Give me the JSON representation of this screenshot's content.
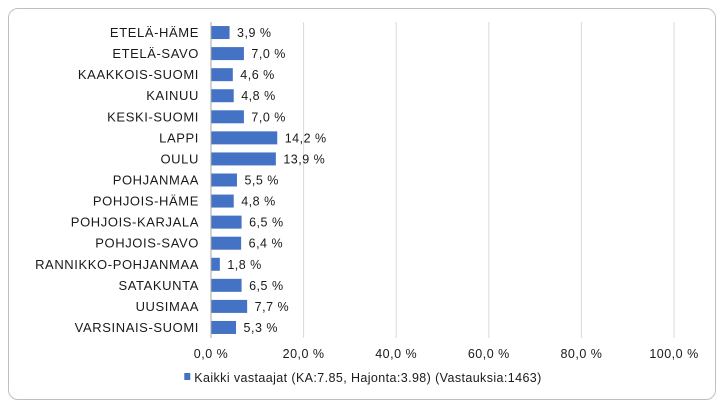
{
  "chart_data": {
    "type": "bar",
    "orientation": "horizontal",
    "categories": [
      "ETELÄ-HÄME",
      "ETELÄ-SAVO",
      "KAAKKOIS-SUOMI",
      "KAINUU",
      "KESKI-SUOMI",
      "LAPPI",
      "OULU",
      "POHJANMAA",
      "POHJOIS-HÄME",
      "POHJOIS-KARJALA",
      "POHJOIS-SAVO",
      "RANNIKKO-POHJANMAA",
      "SATAKUNTA",
      "UUSIMAA",
      "VARSINAIS-SUOMI"
    ],
    "series": [
      {
        "name": "Kaikki vastaajat (KA:7.85, Hajonta:3.98) (Vastauksia:1463)",
        "values": [
          3.9,
          7.0,
          4.6,
          4.8,
          7.0,
          14.2,
          13.9,
          5.5,
          4.8,
          6.5,
          6.4,
          1.8,
          6.5,
          7.7,
          5.3
        ],
        "value_labels": [
          "3,9 %",
          "7,0 %",
          "4,6 %",
          "4,8 %",
          "7,0 %",
          "14,2 %",
          "13,9 %",
          "5,5 %",
          "4,8 %",
          "6,5 %",
          "6,4 %",
          "1,8 %",
          "6,5 %",
          "7,7 %",
          "5,3 %"
        ],
        "color": "#4472c4"
      }
    ],
    "xlim": [
      0,
      100
    ],
    "x_ticks": [
      0,
      20,
      40,
      60,
      80,
      100
    ],
    "x_tick_labels": [
      "0,0 %",
      "20,0 %",
      "40,0 %",
      "60,0 %",
      "80,0 %",
      "100,0 %"
    ],
    "grid": true,
    "legend_position": "bottom"
  },
  "colors": {
    "bar": "#4472c4",
    "grid": "#d9d9d9",
    "axis": "#a6a6a6",
    "border": "#bfbfbf"
  }
}
